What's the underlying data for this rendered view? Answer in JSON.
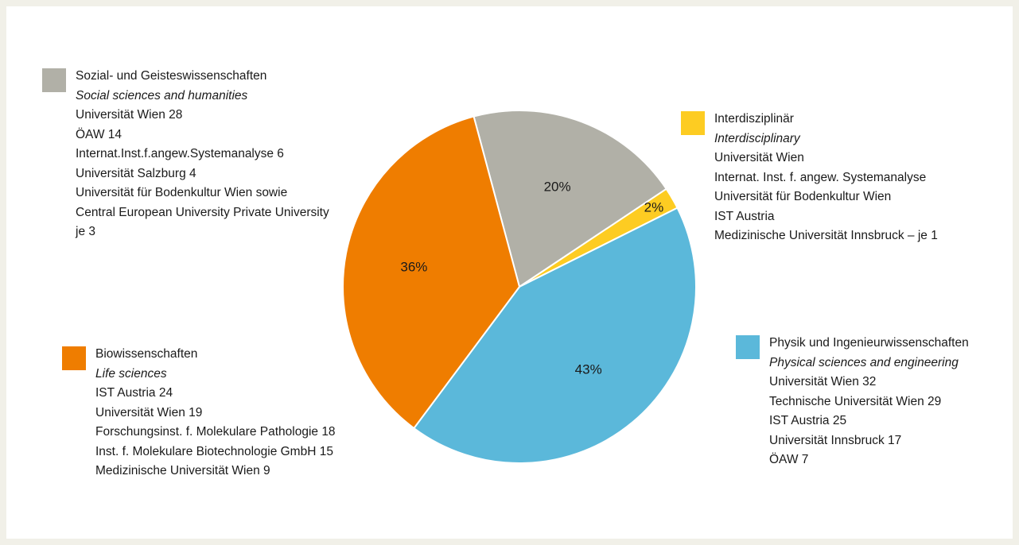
{
  "chart_data": {
    "type": "pie",
    "slices": [
      {
        "label_de": "Sozial- und Geisteswissenschaften",
        "label_en": "Social sciences and humanities",
        "value": 20,
        "value_label": "20%",
        "color": "#b1b0a7",
        "details": [
          "Universität Wien 28",
          "ÖAW 14",
          "Internat.Inst.f.angew.Systemanalyse 6",
          "Universität Salzburg 4",
          "Universität für Bodenkultur Wien sowie",
          "Central European University Private University",
          "je 3"
        ]
      },
      {
        "label_de": "Interdisziplinär",
        "label_en": "Interdisciplinary",
        "value": 2,
        "value_label": "2%",
        "color": "#fdcc22",
        "details": [
          "Universität Wien",
          "Internat. Inst. f. angew. Systemanalyse",
          "Universität für Bodenkultur Wien",
          "IST Austria",
          "Medizinische Universität Innsbruck – je 1"
        ]
      },
      {
        "label_de": "Physik und Ingenieurwissenschaften",
        "label_en": "Physical sciences and engineering",
        "value": 43,
        "value_label": "43%",
        "color": "#5bb8da",
        "details": [
          "Universität Wien 32",
          "Technische Universität Wien 29",
          "IST Austria 25",
          "Universität Innsbruck 17",
          "ÖAW 7"
        ]
      },
      {
        "label_de": "Biowissenschaften",
        "label_en": "Life sciences",
        "value": 36,
        "value_label": "36%",
        "color": "#ef7d00",
        "details": [
          "IST Austria 24",
          "Universität Wien 19",
          "Forschungsinst. f. Molekulare Pathologie 18",
          "Inst. f. Molekulare Biotechnologie GmbH 15",
          "Medizinische Universität Wien 9"
        ]
      }
    ]
  }
}
